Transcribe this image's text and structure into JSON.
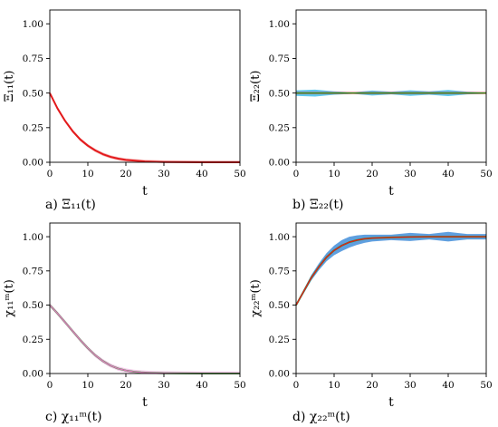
{
  "chart_data": [
    {
      "panel": "a",
      "type": "line",
      "caption": "a) Ξ₁₁(t)",
      "ylabel": "Ξ₁₁(t)",
      "xlabel": "t",
      "xlim": [
        0,
        50
      ],
      "ylim": [
        0,
        1.1
      ],
      "xticks": [
        "0",
        "10",
        "20",
        "30",
        "40",
        "50"
      ],
      "yticks": [
        "0.00",
        "0.25",
        "0.50",
        "0.75",
        "1.00"
      ],
      "grid": false,
      "x": [
        0,
        2,
        4,
        6,
        8,
        10,
        12,
        14,
        16,
        18,
        20,
        25,
        30,
        35,
        40,
        45,
        50
      ],
      "series": [
        {
          "color": "#e31a1c",
          "values": [
            0.5,
            0.39,
            0.3,
            0.225,
            0.165,
            0.12,
            0.085,
            0.058,
            0.039,
            0.026,
            0.017,
            0.006,
            0.002,
            0.001,
            0.0,
            0.0,
            0.0
          ]
        }
      ],
      "band": {
        "color": "#f4a6a6",
        "width": 0.012
      }
    },
    {
      "panel": "b",
      "type": "line",
      "caption": "b) Ξ₂₂(t)",
      "ylabel": "Ξ₂₂(t)",
      "xlabel": "t",
      "xlim": [
        0,
        50
      ],
      "ylim": [
        0,
        1.1
      ],
      "xticks": [
        "0",
        "10",
        "20",
        "30",
        "40",
        "50"
      ],
      "yticks": [
        "0.00",
        "0.25",
        "0.50",
        "0.75",
        "1.00"
      ],
      "grid": false,
      "x": [
        0,
        5,
        10,
        15,
        20,
        25,
        30,
        35,
        40,
        45,
        50
      ],
      "series": [
        {
          "color": "#e31a1c",
          "values": [
            0.5,
            0.5,
            0.5,
            0.5,
            0.5,
            0.5,
            0.5,
            0.5,
            0.5,
            0.5,
            0.5
          ]
        },
        {
          "color": "#2ca02c",
          "values": [
            0.5,
            0.5,
            0.5,
            0.5,
            0.5,
            0.5,
            0.5,
            0.5,
            0.5,
            0.5,
            0.5
          ]
        }
      ],
      "band": {
        "color": "#29b6e8",
        "half_width": [
          0.02,
          0.025,
          0.012,
          0.006,
          0.018,
          0.01,
          0.02,
          0.012,
          0.022,
          0.01,
          0.006
        ]
      }
    },
    {
      "panel": "c",
      "type": "line",
      "caption": "c) χ₁₁ᵐ(t)",
      "ylabel": "χ₁₁ᵐ(t)",
      "xlabel": "t",
      "xlim": [
        0,
        50
      ],
      "ylim": [
        0,
        1.1
      ],
      "xticks": [
        "0",
        "10",
        "20",
        "30",
        "40",
        "50"
      ],
      "yticks": [
        "0.00",
        "0.25",
        "0.50",
        "0.75",
        "1.00"
      ],
      "grid": false,
      "x": [
        0,
        2,
        4,
        6,
        8,
        10,
        12,
        14,
        16,
        18,
        20,
        22,
        24,
        26,
        28,
        30,
        35,
        40,
        45,
        50
      ],
      "series": [
        {
          "color": "#2ca02c",
          "values": [
            0.5,
            0.44,
            0.375,
            0.31,
            0.245,
            0.185,
            0.132,
            0.09,
            0.058,
            0.036,
            0.022,
            0.013,
            0.008,
            0.005,
            0.003,
            0.002,
            0.001,
            0.0,
            0.0,
            0.0
          ]
        },
        {
          "color": "#e377c2",
          "values": [
            0.5,
            0.44,
            0.375,
            0.31,
            0.245,
            0.185,
            0.132,
            0.09,
            0.058,
            0.036,
            0.022,
            0.013,
            0.008,
            0.005,
            0.003,
            0.002,
            0.001,
            0.0,
            0.0,
            0.0
          ]
        }
      ],
      "band": {
        "color": "#f3b9e6",
        "width": 0.015
      }
    },
    {
      "panel": "d",
      "type": "line",
      "caption": "d) χ₂₂ᵐ(t)",
      "ylabel": "χ₂₂ᵐ(t)",
      "xlabel": "t",
      "xlim": [
        0,
        50
      ],
      "ylim": [
        0,
        1.1
      ],
      "xticks": [
        "0",
        "10",
        "20",
        "30",
        "40",
        "50"
      ],
      "yticks": [
        "0.00",
        "0.25",
        "0.50",
        "0.75",
        "1.00"
      ],
      "grid": false,
      "x": [
        0,
        2,
        4,
        6,
        8,
        10,
        12,
        14,
        16,
        18,
        20,
        25,
        30,
        35,
        40,
        45,
        50
      ],
      "series": [
        {
          "color": "#2ca02c",
          "values": [
            0.5,
            0.6,
            0.7,
            0.78,
            0.85,
            0.9,
            0.935,
            0.96,
            0.975,
            0.985,
            0.99,
            0.995,
            0.998,
            1.0,
            1.0,
            1.0,
            1.0
          ]
        },
        {
          "color": "#e31a1c",
          "values": [
            0.5,
            0.6,
            0.7,
            0.78,
            0.85,
            0.9,
            0.935,
            0.96,
            0.975,
            0.985,
            0.99,
            0.995,
            0.998,
            1.0,
            1.0,
            1.0,
            1.0
          ]
        }
      ],
      "band": {
        "color": "#2a7fd4",
        "half_width": [
          0.01,
          0.015,
          0.02,
          0.025,
          0.03,
          0.035,
          0.04,
          0.04,
          0.035,
          0.03,
          0.025,
          0.02,
          0.03,
          0.02,
          0.035,
          0.02,
          0.02
        ]
      }
    }
  ]
}
